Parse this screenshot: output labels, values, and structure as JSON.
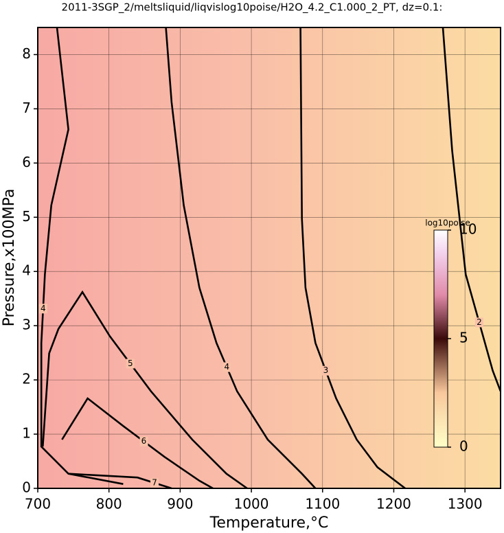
{
  "chart_data": {
    "type": "contour",
    "title": "2011-3SGP_2/meltsliquid/liqvislog10poise/H2O_4.2_C1.000_2_PT, dz=0.1:",
    "x_label": "Temperature,°C",
    "y_label": "Pressure,x100MPa",
    "xlim": [
      700,
      1350
    ],
    "ylim": [
      0,
      8.5
    ],
    "xticks": [
      700,
      800,
      900,
      1000,
      1100,
      1200,
      1300
    ],
    "yticks": [
      0,
      1,
      2,
      3,
      4,
      5,
      6,
      7,
      8
    ],
    "grid": true,
    "contours": [
      {
        "level": 2,
        "x": [
          1269,
          1282,
          1301,
          1339,
          1350
        ],
        "y": [
          8.5,
          6.23,
          3.95,
          2.17,
          1.79
        ]
      },
      {
        "level": 3,
        "x": [
          1069,
          1071,
          1076,
          1090,
          1119,
          1148,
          1177,
          1216
        ],
        "y": [
          8.5,
          4.97,
          3.7,
          2.68,
          1.66,
          0.9,
          0.39,
          0
        ]
      },
      {
        "level": 4,
        "x": [
          880,
          888,
          905,
          927,
          951,
          980,
          1023,
          1071,
          1090
        ],
        "y": [
          8.5,
          7.12,
          5.22,
          3.7,
          2.68,
          1.79,
          0.9,
          0.27,
          0
        ]
      },
      {
        "level": 4,
        "x": [
          727,
          743,
          719,
          710,
          705,
          705,
          743,
          820
        ],
        "y": [
          8.5,
          6.62,
          5.22,
          3.95,
          2.68,
          0.77,
          0.27,
          0.08
        ]
      },
      {
        "level": 5,
        "x": [
          707,
          716,
          729,
          762.7,
          801,
          859,
          917,
          965,
          994
        ],
        "y": [
          0.77,
          2.49,
          2.94,
          3.62,
          2.81,
          1.79,
          0.9,
          0.27,
          0
        ]
      },
      {
        "level": 6,
        "x": [
          734,
          770,
          820,
          878,
          927,
          946
        ],
        "y": [
          0.9,
          1.66,
          1.15,
          0.58,
          0.14,
          0
        ]
      },
      {
        "level": 7,
        "x": [
          743,
          840,
          888
        ],
        "y": [
          0.27,
          0.2,
          0
        ]
      }
    ],
    "colorbar": {
      "label": "log10poise",
      "lim": [
        0,
        10
      ],
      "ticks": [
        0,
        5,
        10
      ]
    }
  }
}
